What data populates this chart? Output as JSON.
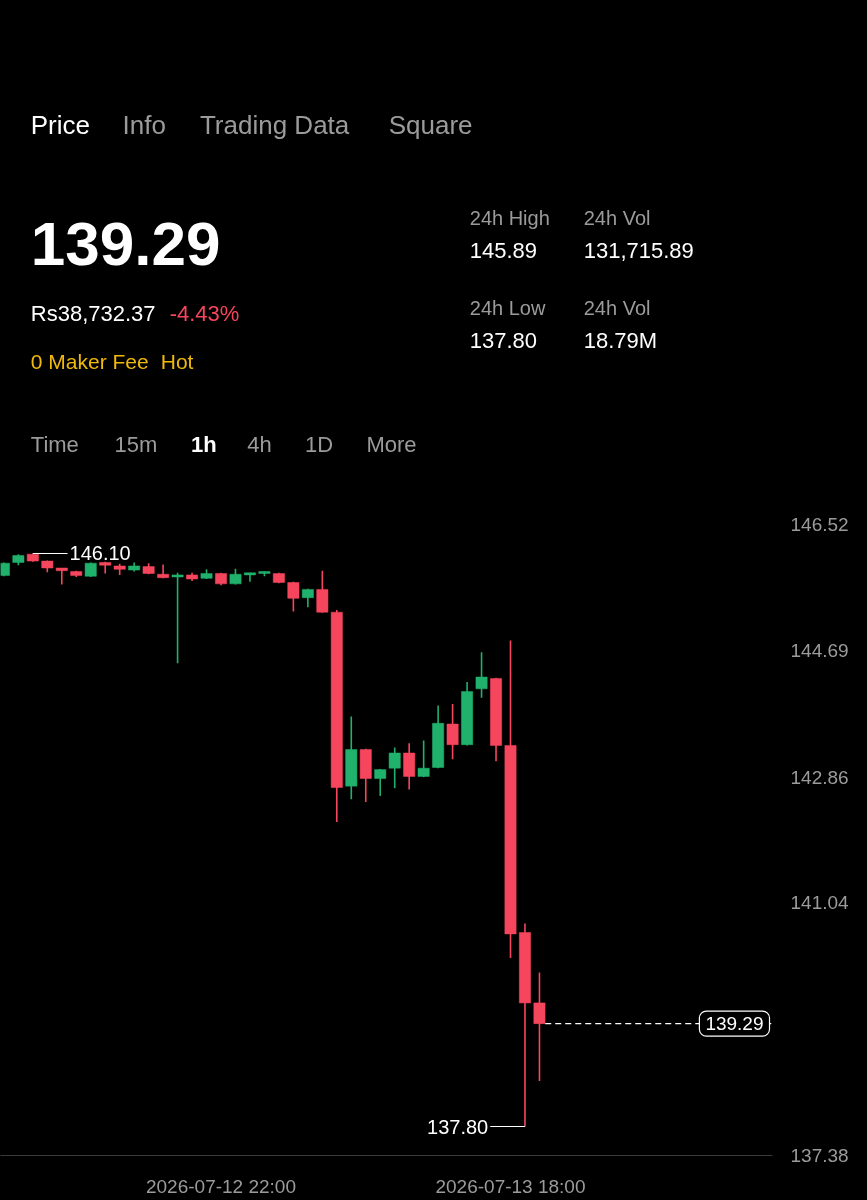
{
  "chart_data": {
    "type": "candlestick",
    "x": [
      "2026-07-12T07:00",
      "2026-07-12T08:00",
      "2026-07-12T09:00",
      "2026-07-12T10:00",
      "2026-07-12T11:00",
      "2026-07-12T12:00",
      "2026-07-12T13:00",
      "2026-07-12T14:00",
      "2026-07-12T15:00",
      "2026-07-12T16:00",
      "2026-07-12T17:00",
      "2026-07-12T18:00",
      "2026-07-12T19:00",
      "2026-07-12T20:00",
      "2026-07-12T21:00",
      "2026-07-12T22:00",
      "2026-07-12T23:00",
      "2026-07-13T00:00",
      "2026-07-13T01:00",
      "2026-07-13T02:00",
      "2026-07-13T03:00",
      "2026-07-13T04:00",
      "2026-07-13T05:00",
      "2026-07-13T06:00",
      "2026-07-13T07:00",
      "2026-07-13T08:00",
      "2026-07-13T09:00",
      "2026-07-13T10:00",
      "2026-07-13T11:00",
      "2026-07-13T12:00",
      "2026-07-13T13:00",
      "2026-07-13T14:00",
      "2026-07-13T15:00",
      "2026-07-13T16:00",
      "2026-07-13T17:00",
      "2026-07-13T18:00",
      "2026-07-13T19:00",
      "2026-07-13T20:00"
    ],
    "ohlc": [
      [
        145.78,
        145.97,
        145.77,
        145.96
      ],
      [
        145.97,
        146.09,
        145.93,
        146.07
      ],
      [
        146.09,
        146.1,
        145.98,
        145.99
      ],
      [
        145.99,
        146.0,
        145.83,
        145.89
      ],
      [
        145.89,
        145.89,
        145.65,
        145.85
      ],
      [
        145.84,
        145.85,
        145.76,
        145.78
      ],
      [
        145.77,
        145.97,
        145.76,
        145.96
      ],
      [
        145.97,
        145.98,
        145.81,
        145.93
      ],
      [
        145.92,
        145.95,
        145.79,
        145.87
      ],
      [
        145.86,
        145.97,
        145.84,
        145.92
      ],
      [
        145.91,
        145.96,
        145.8,
        145.81
      ],
      [
        145.8,
        145.94,
        145.74,
        145.75
      ],
      [
        145.76,
        145.82,
        144.51,
        145.79
      ],
      [
        145.79,
        145.82,
        145.7,
        145.73
      ],
      [
        145.74,
        145.87,
        145.73,
        145.81
      ],
      [
        145.81,
        145.82,
        145.64,
        145.66
      ],
      [
        145.66,
        145.88,
        145.65,
        145.8
      ],
      [
        145.79,
        145.82,
        145.69,
        145.82
      ],
      [
        145.81,
        145.84,
        145.77,
        145.84
      ],
      [
        145.81,
        145.82,
        145.67,
        145.68
      ],
      [
        145.68,
        145.69,
        145.26,
        145.45
      ],
      [
        145.46,
        145.59,
        145.32,
        145.58
      ],
      [
        145.58,
        145.85,
        145.24,
        145.25
      ],
      [
        145.25,
        145.28,
        142.21,
        142.71
      ],
      [
        142.73,
        143.74,
        142.54,
        143.26
      ],
      [
        143.26,
        143.27,
        142.5,
        142.84
      ],
      [
        142.84,
        142.98,
        142.59,
        142.97
      ],
      [
        142.99,
        143.29,
        142.7,
        143.21
      ],
      [
        143.21,
        143.35,
        142.68,
        142.87
      ],
      [
        142.87,
        143.39,
        142.86,
        142.99
      ],
      [
        143.0,
        143.9,
        142.99,
        143.64
      ],
      [
        143.63,
        143.92,
        143.12,
        143.33
      ],
      [
        143.33,
        144.24,
        143.32,
        144.1
      ],
      [
        144.14,
        144.67,
        144.01,
        144.31
      ],
      [
        144.29,
        144.3,
        143.09,
        143.32
      ],
      [
        143.32,
        144.84,
        140.24,
        140.59
      ],
      [
        140.61,
        140.74,
        137.8,
        139.59
      ],
      [
        139.59,
        140.03,
        138.46,
        139.29
      ]
    ],
    "colors": [
      "#20b26c",
      "#20b26c",
      "#f6465d",
      "#f6465d",
      "#f6465d",
      "#f6465d",
      "#20b26c",
      "#f6465d",
      "#f6465d",
      "#20b26c",
      "#f6465d",
      "#f6465d",
      "#20b26c",
      "#f6465d",
      "#20b26c",
      "#f6465d",
      "#20b26c",
      "#20b26c",
      "#20b26c",
      "#f6465d",
      "#f6465d",
      "#20b26c",
      "#f6465d",
      "#f6465d",
      "#20b26c",
      "#f6465d",
      "#20b26c",
      "#20b26c",
      "#f6465d",
      "#20b26c",
      "#20b26c",
      "#f6465d",
      "#20b26c",
      "#20b26c",
      "#f6465d",
      "#f6465d",
      "#f6465d",
      "#f6465d"
    ],
    "xlim": [
      "2026-07-12T06:46",
      "2026-07-14T12:06"
    ],
    "xticks": [
      {
        "value": "2026-07-12T22:00",
        "label": "2026-07-12 22:00"
      },
      {
        "value": "2026-07-13T18:00",
        "label": "2026-07-13 18:00"
      }
    ],
    "ylim": [
      137.38,
      146.52
    ],
    "yticks": [
      146.52,
      144.69,
      142.86,
      141.04,
      137.38
    ],
    "ref_lines": [
      {
        "axis": "y",
        "value": 139.29,
        "label": "139.29",
        "color": "#ffffff",
        "line_style": "dashed"
      }
    ],
    "annotations": [
      {
        "text": "146.10",
        "x": "2026-07-12T09:00",
        "y": 146.1
      },
      {
        "text": "137.80",
        "x": "2026-07-13T19:00",
        "y": 137.8
      },
      "Price",
      "Info",
      "Trading Data",
      "Square",
      "139.29",
      "Rs38,732.37",
      "-4.43%",
      "0 Maker Fee",
      "Hot",
      "24h High",
      "145.89",
      "24h Vol",
      "131,715.89",
      "24h Low",
      "137.80",
      "24h Vol",
      "18.79M",
      "Time",
      "15m",
      "1h",
      "4h",
      "1D",
      "More"
    ]
  }
}
